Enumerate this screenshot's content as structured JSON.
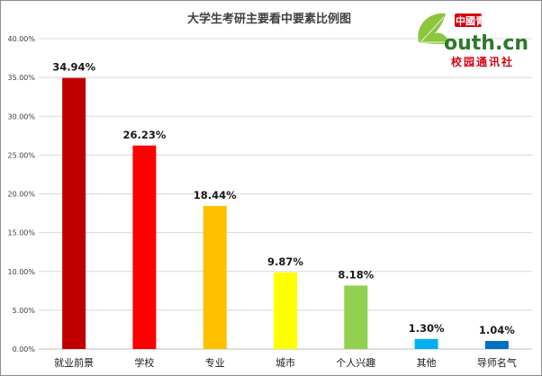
{
  "chart_data": {
    "type": "bar",
    "title": "大学生考研主要看中要素比例图",
    "xlabel": "",
    "ylabel": "",
    "ylim": [
      0,
      40
    ],
    "yticks": [
      "0.00%",
      "5.00%",
      "10.00%",
      "15.00%",
      "20.00%",
      "25.00%",
      "30.00%",
      "35.00%",
      "40.00%"
    ],
    "grid": true,
    "legend": "none",
    "categories": [
      "就业前景",
      "学校",
      "专业",
      "城市",
      "个人兴趣",
      "其他",
      "导师名气"
    ],
    "values": [
      34.94,
      26.23,
      18.44,
      9.87,
      8.18,
      1.3,
      1.04
    ],
    "data_labels": [
      "34.94%",
      "26.23%",
      "18.44%",
      "9.87%",
      "8.18%",
      "1.30%",
      "1.04%"
    ],
    "colors": [
      "#c00000",
      "#ff0000",
      "#ffc000",
      "#ffff00",
      "#92d050",
      "#00b0f0",
      "#0070c0"
    ]
  },
  "logo": {
    "brand_top": "中國青年网",
    "brand_main": "outh.cn",
    "brand_sub": "校园通讯社",
    "leaf_color": "#8cc63f",
    "text_color": "#2b7a2b",
    "red": "#d7000f"
  }
}
